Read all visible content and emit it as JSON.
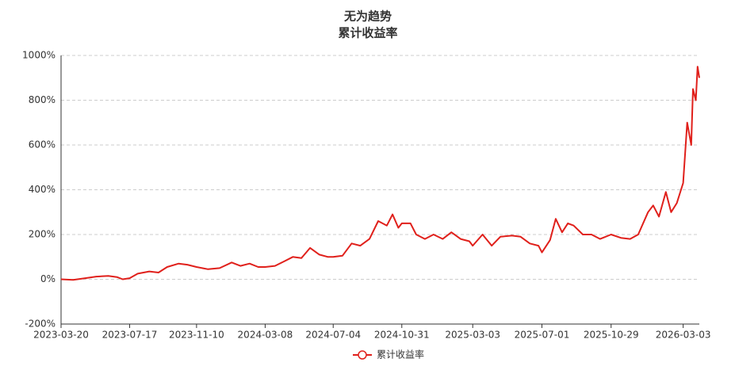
{
  "chart_data": {
    "type": "line",
    "title": "无为趋势",
    "subtitle": "累计收益率",
    "x": [
      "2023-03-20",
      "2023-04-10",
      "2023-05-01",
      "2023-05-20",
      "2023-06-10",
      "2023-06-25",
      "2023-07-05",
      "2023-07-17",
      "2023-07-31",
      "2023-08-20",
      "2023-09-05",
      "2023-09-20",
      "2023-10-10",
      "2023-10-25",
      "2023-11-10",
      "2023-11-30",
      "2023-12-20",
      "2024-01-10",
      "2024-01-25",
      "2024-02-10",
      "2024-02-25",
      "2024-03-08",
      "2024-03-25",
      "2024-04-10",
      "2024-04-25",
      "2024-05-10",
      "2024-05-25",
      "2024-06-10",
      "2024-06-25",
      "2024-07-04",
      "2024-07-20",
      "2024-08-05",
      "2024-08-20",
      "2024-09-05",
      "2024-09-20",
      "2024-10-05",
      "2024-10-15",
      "2024-10-25",
      "2024-10-31",
      "2024-11-15",
      "2024-11-25",
      "2024-12-10",
      "2024-12-25",
      "2025-01-10",
      "2025-01-25",
      "2025-02-10",
      "2025-02-25",
      "2025-03-03",
      "2025-03-20",
      "2025-04-05",
      "2025-04-20",
      "2025-05-10",
      "2025-05-25",
      "2025-06-10",
      "2025-06-25",
      "2025-07-01",
      "2025-07-15",
      "2025-07-25",
      "2025-08-05",
      "2025-08-15",
      "2025-08-25",
      "2025-09-10",
      "2025-09-25",
      "2025-10-10",
      "2025-10-29",
      "2025-11-15",
      "2025-12-01",
      "2025-12-15",
      "2026-01-01",
      "2026-01-10",
      "2026-01-20",
      "2026-02-01",
      "2026-02-10",
      "2026-02-20",
      "2026-03-03",
      "2026-03-10",
      "2026-03-17",
      "2026-03-20",
      "2026-03-25",
      "2026-03-28",
      "2026-03-31"
    ],
    "series": [
      {
        "name": "累计收益率",
        "color": "#e0201b",
        "values": [
          0,
          -3,
          5,
          12,
          15,
          10,
          0,
          5,
          25,
          35,
          30,
          55,
          70,
          65,
          55,
          45,
          50,
          75,
          60,
          70,
          55,
          55,
          60,
          80,
          100,
          95,
          140,
          110,
          100,
          100,
          105,
          160,
          150,
          180,
          260,
          240,
          290,
          230,
          250,
          250,
          200,
          180,
          200,
          180,
          210,
          180,
          170,
          150,
          200,
          150,
          190,
          195,
          190,
          160,
          150,
          120,
          175,
          270,
          210,
          250,
          240,
          200,
          200,
          180,
          200,
          185,
          180,
          200,
          300,
          330,
          280,
          390,
          300,
          340,
          430,
          700,
          600,
          850,
          800,
          950,
          900
        ]
      }
    ],
    "xlim": [
      "2023-03-20",
      "2026-03-31"
    ],
    "xticks": [
      "2023-03-20",
      "2023-07-17",
      "2023-11-10",
      "2024-03-08",
      "2024-07-04",
      "2024-10-31",
      "2025-03-03",
      "2025-07-01",
      "2025-10-29",
      "2026-03-03"
    ],
    "ylim": [
      -200,
      1000
    ],
    "yticks": [
      {
        "value": -200,
        "label": "-200%"
      },
      {
        "value": 0,
        "label": "0%"
      },
      {
        "value": 200,
        "label": "200%"
      },
      {
        "value": 400,
        "label": "400%"
      },
      {
        "value": 600,
        "label": "600%"
      },
      {
        "value": 800,
        "label": "800%"
      },
      {
        "value": 1000,
        "label": "1000%"
      }
    ],
    "grid": true
  }
}
